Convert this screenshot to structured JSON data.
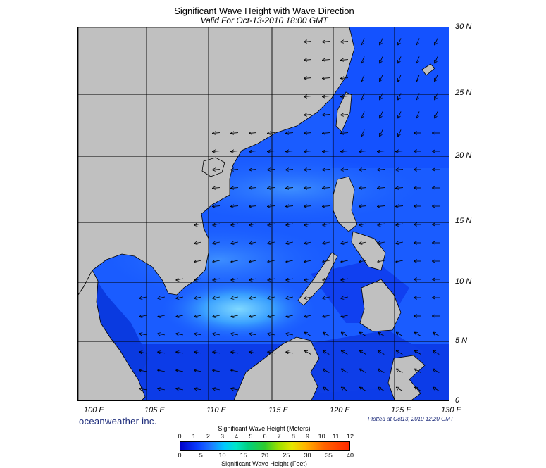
{
  "title": "Significant Wave Height with Wave Direction",
  "subtitle": "Valid For Oct-13-2010 18:00 GMT",
  "lat_labels": [
    "30 N",
    "25 N",
    "20 N",
    "15 N",
    "10 N",
    "5 N",
    "0"
  ],
  "lon_labels": [
    "100 E",
    "105 E",
    "110 E",
    "115 E",
    "120 E",
    "125 E",
    "130 E"
  ],
  "brand": "oceanweather inc.",
  "plotted": "Plotted at Oct13, 2010 12:20 GMT",
  "legend": {
    "meters_title": "Significant Wave Height (Meters)",
    "feet_title": "Significant Wave Height (Feet)",
    "meters_ticks": [
      "0",
      "1",
      "2",
      "3",
      "4",
      "5",
      "6",
      "7",
      "8",
      "9",
      "10",
      "11",
      "12"
    ],
    "feet_ticks": [
      "0",
      "5",
      "10",
      "15",
      "20",
      "25",
      "30",
      "35",
      "40"
    ]
  },
  "colors": {
    "land": "#c0c0c0",
    "ocean_deep": "#0a46ff",
    "ocean_mid": "#1e64ff",
    "ocean_high": "#3a8cff",
    "ocean_peak": "#6ec8ff",
    "ocean_calm": "#0000c0"
  }
}
